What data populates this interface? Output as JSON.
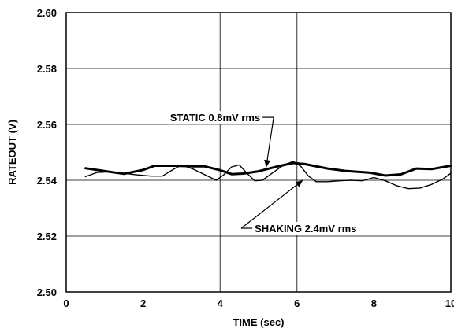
{
  "chart_data": {
    "type": "line",
    "title": "",
    "xlabel": "TIME (sec)",
    "ylabel": "RATEOUT (V)",
    "xlim": [
      0,
      10
    ],
    "ylim": [
      2.5,
      2.6
    ],
    "x_ticks": [
      "0",
      "2",
      "4",
      "6",
      "8",
      "10"
    ],
    "y_ticks": [
      "2.50",
      "2.52",
      "2.54",
      "2.56",
      "2.58",
      "2.60"
    ],
    "grid": true,
    "series": [
      {
        "name": "STATIC 0.8mV rms",
        "line_weight": "heavy",
        "x": [
          0.5,
          1.0,
          1.5,
          2.0,
          2.3,
          2.8,
          3.3,
          3.6,
          4.0,
          4.3,
          4.6,
          5.0,
          5.5,
          5.9,
          6.2,
          6.8,
          7.3,
          7.9,
          8.3,
          8.7,
          9.1,
          9.5,
          10.0
        ],
        "values": [
          2.5443,
          2.5433,
          2.5423,
          2.5437,
          2.5452,
          2.5452,
          2.545,
          2.545,
          2.5436,
          2.5422,
          2.5424,
          2.5432,
          2.545,
          2.5462,
          2.5458,
          2.5442,
          2.5433,
          2.5427,
          2.5417,
          2.5421,
          2.5442,
          2.544,
          2.5452
        ]
      },
      {
        "name": "SHAKING 2.4mV rms",
        "line_weight": "light",
        "x": [
          0.5,
          0.8,
          1.1,
          1.5,
          1.8,
          2.2,
          2.5,
          2.8,
          3.0,
          3.3,
          3.6,
          3.9,
          4.1,
          4.3,
          4.5,
          4.7,
          4.9,
          5.1,
          5.3,
          5.6,
          5.9,
          6.1,
          6.3,
          6.5,
          6.8,
          7.1,
          7.4,
          7.7,
          8.0,
          8.3,
          8.6,
          8.9,
          9.2,
          9.5,
          9.8,
          10.0
        ],
        "values": [
          2.5413,
          2.5428,
          2.543,
          2.5425,
          2.542,
          2.5415,
          2.5415,
          2.544,
          2.5455,
          2.544,
          2.542,
          2.54,
          2.542,
          2.5448,
          2.5455,
          2.5425,
          2.5398,
          2.54,
          2.542,
          2.545,
          2.5468,
          2.545,
          2.5415,
          2.5395,
          2.5395,
          2.5398,
          2.54,
          2.5398,
          2.541,
          2.5398,
          2.538,
          2.537,
          2.5372,
          2.5385,
          2.5405,
          2.5425
        ]
      }
    ],
    "annotations": [
      {
        "text": "STATIC 0.8mV rms",
        "series": 0,
        "text_x": 2.7,
        "text_y": 2.5611,
        "arrow_to_x": 5.2,
        "arrow_to_y": 2.5447
      },
      {
        "text": "SHAKING 2.4mV rms",
        "series": 1,
        "text_x": 4.9,
        "text_y": 2.5214,
        "arrow_to_x": 6.15,
        "arrow_to_y": 2.54
      }
    ]
  }
}
